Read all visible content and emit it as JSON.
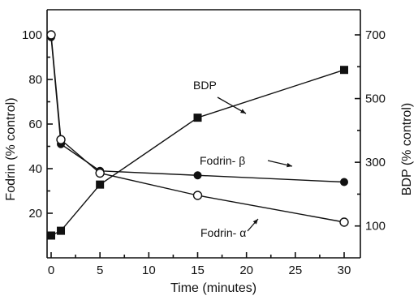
{
  "chart_data": {
    "type": "line",
    "title": "",
    "xlabel": "Time  (minutes)",
    "ylabel_left": "Fodrin (% control)",
    "ylabel_right": "BDP (% control)",
    "xlim": [
      0,
      30
    ],
    "ylim_left": [
      0,
      100
    ],
    "ylim_right": [
      0,
      700
    ],
    "x_ticks": [
      "0",
      "5",
      "10",
      "15",
      "20",
      "25",
      "30"
    ],
    "y_left_ticks": [
      "20",
      "40",
      "60",
      "80",
      "100"
    ],
    "y_right_ticks": [
      "100",
      "300",
      "500",
      "700"
    ],
    "grid": false,
    "series": [
      {
        "name": "BDP",
        "axis": "right",
        "marker": "filled-square",
        "x": [
          0,
          1,
          5,
          15,
          30
        ],
        "y": [
          70,
          85,
          230,
          440,
          590
        ]
      },
      {
        "name": "Fodrin-β",
        "axis": "left",
        "marker": "filled-circle",
        "x": [
          0,
          1,
          5,
          15,
          30
        ],
        "y": [
          99,
          51,
          39,
          37,
          34
        ]
      },
      {
        "name": "Fodrin-α",
        "axis": "left",
        "marker": "open-circle",
        "x": [
          0,
          1,
          5,
          15,
          30
        ],
        "y": [
          100,
          53,
          38,
          28,
          16
        ]
      }
    ],
    "annotations": [
      "BDP",
      "Fodrin- β",
      "Fodrin- α"
    ]
  }
}
